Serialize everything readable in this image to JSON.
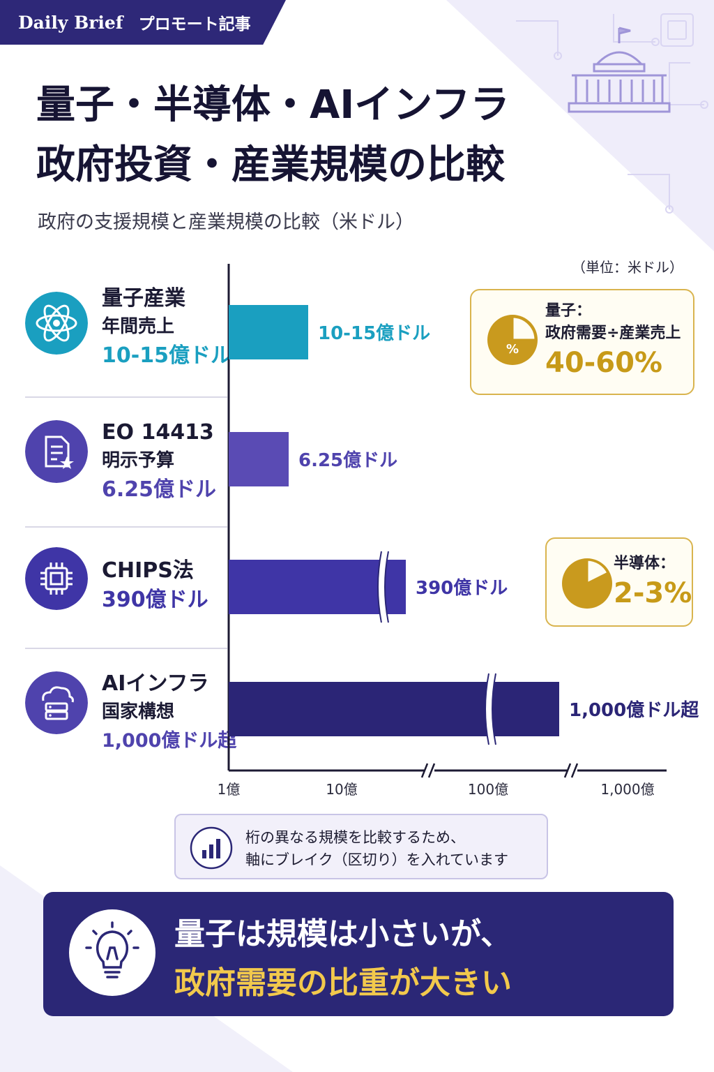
{
  "brand": {
    "name": "Daily Brief",
    "tag": "プロモート記事"
  },
  "title_lines": [
    "量子・半導体・AIインフラ",
    "政府投資・産業規模の比較"
  ],
  "subtitle": "政府の支援規模と産業規模の比較（米ドル）",
  "unit": "（単位：米ドル）",
  "rows": [
    {
      "name1": "量子産業",
      "name2": "年間売上",
      "value": "10-15億ドル",
      "bar_label": "10-15億ドル",
      "icon": "atom-icon",
      "color": "#1a9fc0"
    },
    {
      "name1": "EO 14413",
      "name2": "明示予算",
      "value": "6.25億ドル",
      "bar_label": "6.25億ドル",
      "icon": "document-star-icon",
      "color": "#5a4bb4"
    },
    {
      "name1": "CHIPS法",
      "name2": "",
      "value": "390億ドル",
      "bar_label": "390億ドル",
      "icon": "chip-icon",
      "color": "#3f35a6"
    },
    {
      "name1": "AIインフラ",
      "name2": "国家構想",
      "value": "1,000億ドル超",
      "bar_label": "1,000億ドル超",
      "icon": "cloud-server-icon",
      "color": "#2b2576"
    }
  ],
  "callouts": {
    "quantum": {
      "label1": "量子：",
      "label2": "政府需要÷産業売上",
      "pct": "40-60%",
      "icon": "pie-percent-icon"
    },
    "semi": {
      "label1": "半導体：",
      "pct": "2-3%",
      "icon": "pie-chart-icon"
    }
  },
  "note": {
    "line1": "桁の異なる規模を比較するため、",
    "line2": "軸にブレイク（区切り）を入れています",
    "icon": "bar-chart-icon"
  },
  "conclusion": {
    "line1": "量子は規模は小さいが、",
    "line2": "政府需要の比重が大きい",
    "icon": "lightbulb-icon"
  },
  "chart_data": {
    "type": "bar",
    "orientation": "horizontal",
    "x_scale": "log",
    "x_axis_breaks": true,
    "categories": [
      "量子産業 年間売上",
      "EO 14413 明示予算",
      "CHIPS法",
      "AIインフラ 国家構想"
    ],
    "values": [
      12.5,
      6.25,
      390,
      1000
    ],
    "value_units": "億ドル",
    "xticks": [
      "1億",
      "10億",
      "100億",
      "1,000億"
    ],
    "colors": [
      "#1a9fc0",
      "#5a4bb4",
      "#3f35a6",
      "#2b2576"
    ]
  }
}
